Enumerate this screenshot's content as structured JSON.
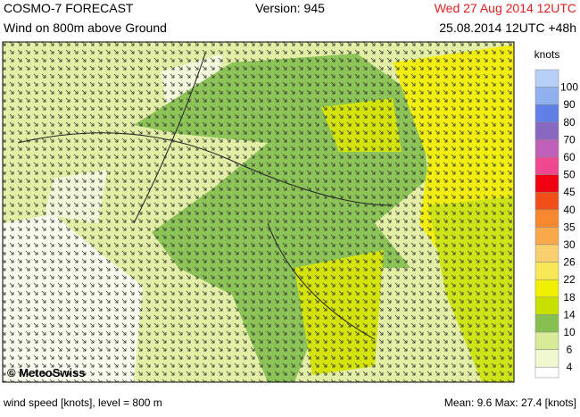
{
  "header": {
    "title": "COSMO-7 FORECAST",
    "version": "Version: 945",
    "valid": "Wed 27 Aug 2014 12UTC",
    "subtitle": "Wind on 800m above Ground",
    "run": "25.08.2014 12UTC +48h"
  },
  "map": {
    "copyright": "© MeteoSwiss"
  },
  "legend": {
    "unit": "knots",
    "levels": [
      {
        "label": "100",
        "color": "#b8d0f8"
      },
      {
        "label": "90",
        "color": "#90b0f0"
      },
      {
        "label": "80",
        "color": "#6080e8"
      },
      {
        "label": "70",
        "color": "#8868c0"
      },
      {
        "label": "60",
        "color": "#c060b8"
      },
      {
        "label": "50",
        "color": "#f04890"
      },
      {
        "label": "45",
        "color": "#f00010"
      },
      {
        "label": "40",
        "color": "#f05018"
      },
      {
        "label": "35",
        "color": "#f88830"
      },
      {
        "label": "30",
        "color": "#f8a848"
      },
      {
        "label": "26",
        "color": "#f8d070"
      },
      {
        "label": "22",
        "color": "#f8e858"
      },
      {
        "label": "18",
        "color": "#f0f000"
      },
      {
        "label": "14",
        "color": "#c8e000"
      },
      {
        "label": "10",
        "color": "#88c050"
      },
      {
        "label": "6",
        "color": "#d8ec98"
      },
      {
        "label": "4",
        "color": "#f0f8d0"
      }
    ]
  },
  "footer": {
    "left": "wind speed [knots], level = 800 m",
    "right": "Mean:   9.6 Max:  27.4 [knots]"
  }
}
